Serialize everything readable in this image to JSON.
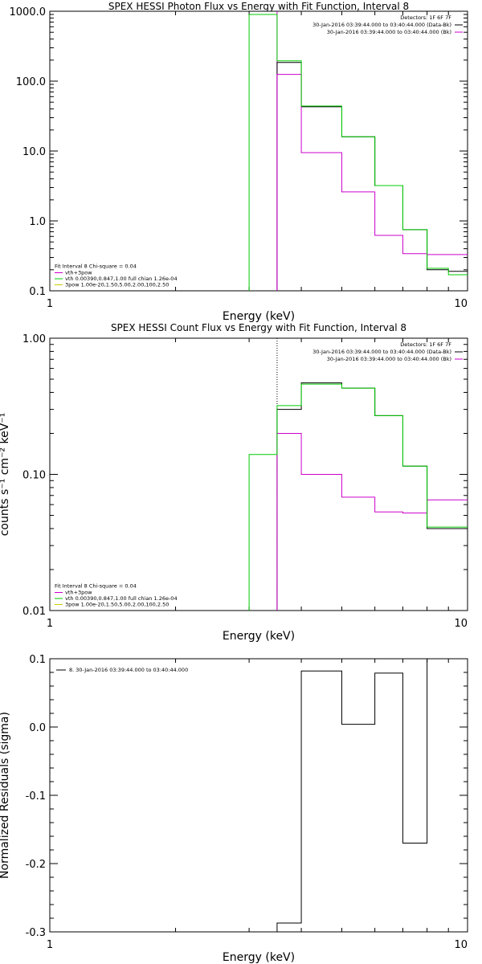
{
  "chart_data": [
    {
      "type": "line",
      "step": true,
      "title": "SPEX HESSI Photon Flux vs Energy with Fit Function, Interval 8",
      "xlabel": "Energy (keV)",
      "ylabel": "",
      "xscale": "log",
      "yscale": "log",
      "xlim": [
        1,
        10
      ],
      "ylim": [
        0.1,
        1000
      ],
      "xticklabels": [
        "1",
        "10"
      ],
      "yticks": [
        0.1,
        1,
        10,
        100,
        1000
      ],
      "yticklabels": [
        "0.1",
        "1.0",
        "10.0",
        "100.0",
        "1000.0"
      ],
      "vline": {
        "x": 3.5,
        "color": "#cc00cc"
      },
      "legend_top": {
        "placement": "top-right",
        "header": "Detectors: 1F 6F 7F",
        "entries": [
          {
            "text": "30-Jan-2016 03:39:44.000 to 03:40:44.000 (Data-Bk)",
            "color": "#000000"
          },
          {
            "text": "30-Jan-2016 03:39:44.000 to 03:40:44.000 (Bk)",
            "color": "#cc00cc"
          }
        ]
      },
      "legend_bottom": {
        "placement": "bottom-left",
        "header": "Fit Interval 8   Chi-square = 0.04",
        "entries": [
          {
            "text": "vth+3pow",
            "color": "#cc00cc"
          },
          {
            "text": "vth 0.00390,0.847,1.00  full chian 1.26e-04",
            "color": "#00cc00"
          },
          {
            "text": "3pow 1.00e-20,1.50,5.00,2.00,100,2.50",
            "color": "#cccc00"
          }
        ]
      },
      "bin_edges": [
        3.0,
        3.5,
        4.0,
        5.0,
        6.0,
        7.0,
        8.0,
        9.0,
        10.0
      ],
      "series": [
        {
          "color": "#000000",
          "values": [
            null,
            185,
            43,
            16,
            3.2,
            0.75,
            0.2,
            0.19
          ]
        },
        {
          "color": "#cc00cc",
          "values": [
            null,
            125,
            9.5,
            2.6,
            0.62,
            0.34,
            0.33,
            0.33
          ]
        },
        {
          "color": "#00cc00",
          "values": [
            900,
            195,
            44,
            16,
            3.2,
            0.75,
            0.21,
            0.17
          ]
        }
      ]
    },
    {
      "type": "line",
      "step": true,
      "title": "SPEX HESSI Count Flux vs Energy with Fit Function, Interval 8",
      "xlabel": "Energy (keV)",
      "ylabel": "counts s⁻¹ cm⁻² keV⁻¹",
      "xscale": "log",
      "yscale": "log",
      "xlim": [
        1,
        10
      ],
      "ylim": [
        0.01,
        1.0
      ],
      "xticklabels": [
        "1",
        "10"
      ],
      "yticks": [
        0.01,
        0.1,
        1.0
      ],
      "yticklabels": [
        "0.01",
        "0.10",
        "1.00"
      ],
      "vline": {
        "x": 3.5,
        "color": "#000000",
        "dotted": true
      },
      "legend_top": {
        "placement": "top-right",
        "header": "Detectors: 1F 6F 7F",
        "entries": [
          {
            "text": "30-Jan-2016 03:39:44.000 to 03:40:44.000 (Data-Bk)",
            "color": "#000000"
          },
          {
            "text": "30-Jan-2016 03:39:44.000 to 03:40:44.000 (Bk)",
            "color": "#cc00cc"
          }
        ]
      },
      "legend_bottom": {
        "placement": "bottom-left",
        "header": "Fit Interval 8   Chi-square = 0.04",
        "entries": [
          {
            "text": "vth+3pow",
            "color": "#cc00cc"
          },
          {
            "text": "vth 0.00390,0.847,1.00  full chian 1.26e-04",
            "color": "#00cc00"
          },
          {
            "text": "3pow 1.00e-20,1.50,5.00,2.00,100,2.50",
            "color": "#cccc00"
          }
        ]
      },
      "bin_edges": [
        3.0,
        3.5,
        4.0,
        5.0,
        6.0,
        7.0,
        8.0,
        9.0,
        10.0
      ],
      "series": [
        {
          "color": "#000000",
          "values": [
            null,
            0.3,
            0.47,
            0.43,
            0.27,
            0.115,
            0.04,
            0.04
          ]
        },
        {
          "color": "#cc00cc",
          "values": [
            null,
            0.2,
            0.1,
            0.068,
            0.053,
            0.052,
            0.065,
            0.065
          ]
        },
        {
          "color": "#00cc00",
          "values": [
            0.14,
            0.32,
            0.46,
            0.43,
            0.27,
            0.115,
            0.041,
            0.041
          ]
        }
      ]
    },
    {
      "type": "line",
      "step": true,
      "title": "",
      "xlabel": "Energy (keV)",
      "ylabel": "Normalized Residuals (sigma)",
      "xscale": "log",
      "yscale": "linear",
      "xlim": [
        1,
        10
      ],
      "ylim": [
        -0.3,
        0.1
      ],
      "xticklabels": [
        "1",
        "10"
      ],
      "yticks": [
        -0.3,
        -0.2,
        -0.1,
        0.0,
        0.1
      ],
      "yticklabels": [
        "-0.3",
        "-0.2",
        "-0.1",
        "0.0",
        "0.1"
      ],
      "legend_top": {
        "placement": "top-left",
        "header": "",
        "entries": [
          {
            "text": "8. 30-Jan-2016 03:39:44.000 to 03:40:44.000",
            "color": "#000000"
          }
        ]
      },
      "bin_edges": [
        3.5,
        4.0,
        5.0,
        6.0,
        7.0,
        8.0,
        9.0,
        10.0
      ],
      "series": [
        {
          "color": "#000000",
          "values": [
            -0.287,
            0.082,
            0.004,
            0.079,
            -0.17,
            0.102,
            0.102
          ]
        }
      ]
    }
  ]
}
